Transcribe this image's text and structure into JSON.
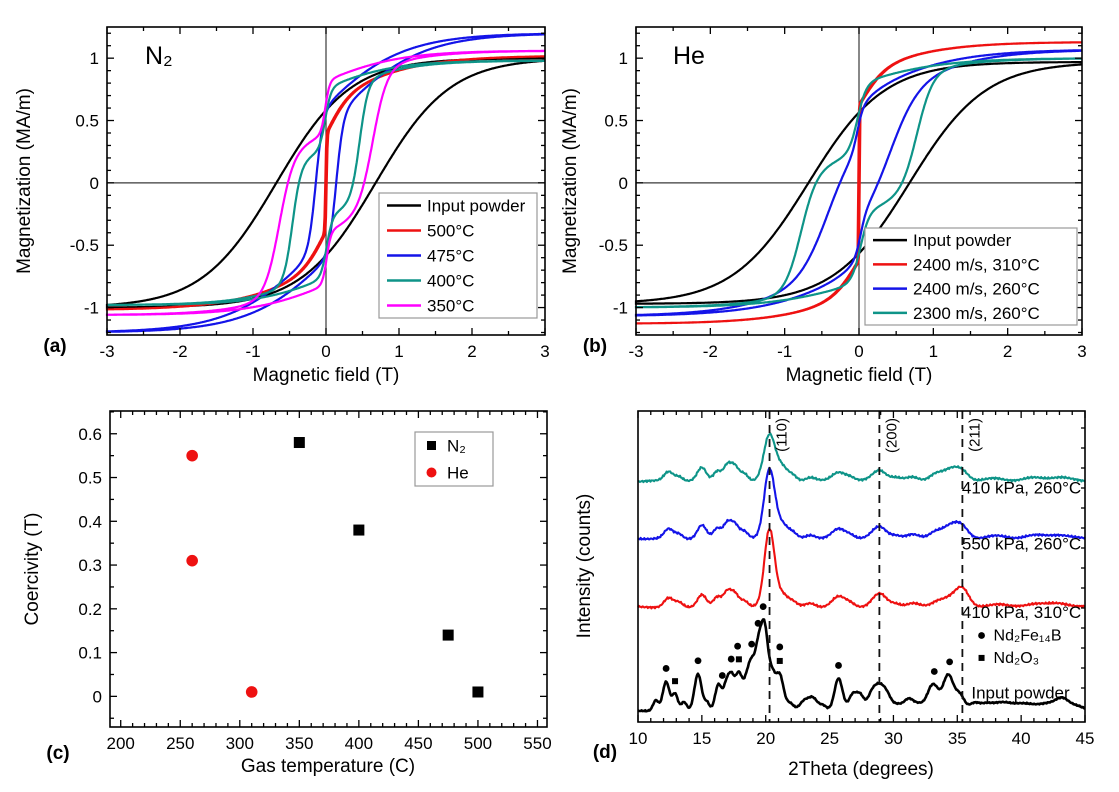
{
  "colors": {
    "black": "#000000",
    "red": "#EE1111",
    "blue": "#1414E8",
    "teal": "#0E9488",
    "magenta": "#FF00FF",
    "frame": "#000000",
    "zero_line": "#3a3a3a",
    "legend_border": "#999999"
  },
  "chart_data": [
    {
      "id": "a",
      "type": "line",
      "subtype": "hysteresis",
      "panel_label": "(a)",
      "annotation": "N₂",
      "xlabel": "Magnetic field (T)",
      "ylabel": "Magnetization (MA/m)",
      "xlim": [
        -3,
        3
      ],
      "ylim": [
        -1.22,
        1.25
      ],
      "xticks": [
        -3,
        -2,
        -1,
        0,
        1,
        2,
        3
      ],
      "xtick_labels": [
        "-3",
        "-2",
        "-1",
        "0",
        "1",
        "2",
        "3"
      ],
      "yticks": [
        -1,
        -0.5,
        0,
        0.5,
        1
      ],
      "ytick_labels": [
        "-1",
        "-0.5",
        "0",
        "0.5",
        "1"
      ],
      "minor_x": 0.5,
      "minor_y": 0.1,
      "zero_lines": true,
      "legend_position": "bottom-right",
      "series": [
        {
          "name": "Input powder",
          "color_key": "black",
          "coercivity_T": 0.68,
          "saturation_MA_per_m": 1.0,
          "components": [
            {
              "frac": 1.0,
              "hc": 0.68,
              "w": 1.02
            }
          ]
        },
        {
          "name": "500°C",
          "color_key": "red",
          "coercivity_T": 0.01,
          "saturation_MA_per_m": 1.02,
          "components": [
            {
              "frac": 0.38,
              "hc": 0.01,
              "w": 0.012
            },
            {
              "frac": 0.28,
              "hc": 0.01,
              "w": 0.32
            },
            {
              "frac": 0.34,
              "hc": 0.01,
              "w": 1.25
            }
          ]
        },
        {
          "name": "475°C",
          "color_key": "blue",
          "coercivity_T": 0.14,
          "saturation_MA_per_m": 1.2,
          "components": [
            {
              "frac": 0.45,
              "hc": 0.14,
              "w": 0.1
            },
            {
              "frac": 0.55,
              "hc": 0.14,
              "w": 1.15
            }
          ]
        },
        {
          "name": "400°C",
          "color_key": "teal",
          "coercivity_T": 0.38,
          "saturation_MA_per_m": 0.98,
          "components": [
            {
              "frac": 0.25,
              "hc": 0.01,
              "w": 0.08
            },
            {
              "frac": 0.5,
              "hc": 0.46,
              "w": 0.12
            },
            {
              "frac": 0.25,
              "hc": 0.1,
              "w": 1.0
            }
          ]
        },
        {
          "name": "350°C",
          "color_key": "magenta",
          "coercivity_T": 0.58,
          "saturation_MA_per_m": 1.06,
          "components": [
            {
              "frac": 0.2,
              "hc": 0.01,
              "w": 0.06
            },
            {
              "frac": 0.55,
              "hc": 0.64,
              "w": 0.2
            },
            {
              "frac": 0.25,
              "hc": 0.1,
              "w": 1.1
            }
          ]
        }
      ]
    },
    {
      "id": "b",
      "type": "line",
      "subtype": "hysteresis",
      "panel_label": "(b)",
      "annotation": "He",
      "xlabel": "Magnetic field (T)",
      "ylabel": "Magnetization (MA/m)",
      "xlim": [
        -3,
        3
      ],
      "ylim": [
        -1.22,
        1.25
      ],
      "xticks": [
        -3,
        -2,
        -1,
        0,
        1,
        2,
        3
      ],
      "xtick_labels": [
        "-3",
        "-2",
        "-1",
        "0",
        "1",
        "2",
        "3"
      ],
      "yticks": [
        -1,
        -0.5,
        0,
        0.5,
        1
      ],
      "ytick_labels": [
        "-1",
        "-0.5",
        "0",
        "0.5",
        "1"
      ],
      "minor_x": 0.5,
      "minor_y": 0.1,
      "zero_lines": true,
      "legend_position": "bottom-right",
      "series": [
        {
          "name": "Input powder",
          "color_key": "black",
          "coercivity_T": 0.68,
          "saturation_MA_per_m": 0.97,
          "components": [
            {
              "frac": 1.0,
              "hc": 0.68,
              "w": 1.02
            }
          ]
        },
        {
          "name": "2400 m/s, 310°C",
          "color_key": "red",
          "coercivity_T": 0.01,
          "saturation_MA_per_m": 1.13,
          "components": [
            {
              "frac": 0.55,
              "hc": 0.01,
              "w": 0.006
            },
            {
              "frac": 0.25,
              "hc": 0.01,
              "w": 0.35
            },
            {
              "frac": 0.2,
              "hc": 0.01,
              "w": 1.2
            }
          ]
        },
        {
          "name": "2400 m/s, 260°C",
          "color_key": "blue",
          "coercivity_T": 0.31,
          "saturation_MA_per_m": 1.07,
          "components": [
            {
              "frac": 0.15,
              "hc": 0.02,
              "w": 0.08
            },
            {
              "frac": 0.45,
              "hc": 0.42,
              "w": 0.38
            },
            {
              "frac": 0.4,
              "hc": 0.15,
              "w": 1.3
            }
          ]
        },
        {
          "name": "2300 m/s, 260°C",
          "color_key": "teal",
          "coercivity_T": 0.55,
          "saturation_MA_per_m": 1.0,
          "components": [
            {
              "frac": 0.28,
              "hc": 0.02,
              "w": 0.12
            },
            {
              "frac": 0.5,
              "hc": 0.78,
              "w": 0.22
            },
            {
              "frac": 0.22,
              "hc": 0.1,
              "w": 1.2
            }
          ]
        }
      ]
    },
    {
      "id": "c",
      "type": "scatter",
      "panel_label": "(c)",
      "xlabel": "Gas temperature (C)",
      "ylabel": "Coercivity (T)",
      "xlim": [
        191,
        558
      ],
      "ylim": [
        -0.07,
        0.652
      ],
      "xticks": [
        200,
        250,
        300,
        350,
        400,
        450,
        500,
        550
      ],
      "xtick_labels": [
        "200",
        "250",
        "300",
        "350",
        "400",
        "450",
        "500",
        "550"
      ],
      "yticks": [
        0,
        0.1,
        0.2,
        0.3,
        0.4,
        0.5,
        0.6
      ],
      "ytick_labels": [
        "0",
        "0.1",
        "0.2",
        "0.3",
        "0.4",
        "0.5",
        "0.6"
      ],
      "minor_x": 10,
      "minor_y": 0.05,
      "zero_lines": false,
      "legend_position": "top-right",
      "series": [
        {
          "name": "N₂",
          "marker": "square",
          "color_key": "black",
          "points": [
            [
              350,
              0.58
            ],
            [
              400,
              0.38
            ],
            [
              475,
              0.14
            ],
            [
              500,
              0.01
            ]
          ]
        },
        {
          "name": "He",
          "marker": "circle",
          "color_key": "red",
          "points": [
            [
              260,
              0.55
            ],
            [
              260,
              0.31
            ],
            [
              310,
              0.01
            ]
          ]
        }
      ]
    },
    {
      "id": "d",
      "type": "line",
      "subtype": "xrd",
      "panel_label": "(d)",
      "xlabel": "2Theta (degrees)",
      "ylabel": "Intensity (counts)",
      "xlim": [
        10,
        45
      ],
      "xticks": [
        10,
        15,
        20,
        25,
        30,
        35,
        40,
        45
      ],
      "xtick_labels": [
        "10",
        "15",
        "20",
        "25",
        "30",
        "35",
        "40",
        "45"
      ],
      "minor_x": 1,
      "dashed_lines": [
        {
          "x": 20.3,
          "label": "(110)"
        },
        {
          "x": 28.9,
          "label": "(200)"
        },
        {
          "x": 35.4,
          "label": "(211)"
        }
      ],
      "traces": [
        {
          "name": "410 kPa, 260°C",
          "color_key": "teal",
          "baseline": 0.775,
          "label_x": 44.7,
          "label_y": 0.735,
          "peaks": [
            [
              12.4,
              0.03,
              0.35
            ],
            [
              13.2,
              0.015,
              0.3
            ],
            [
              15.0,
              0.042,
              0.35
            ],
            [
              16.2,
              0.032,
              0.3
            ],
            [
              17.0,
              0.052,
              0.32
            ],
            [
              17.6,
              0.042,
              0.3
            ],
            [
              18.3,
              0.022,
              0.3
            ],
            [
              20.3,
              0.15,
              0.45
            ],
            [
              21.3,
              0.04,
              0.4
            ],
            [
              22.1,
              0.018,
              0.35
            ],
            [
              23.5,
              0.012,
              0.4
            ],
            [
              25.7,
              0.028,
              0.5
            ],
            [
              26.6,
              0.012,
              0.4
            ],
            [
              28.9,
              0.035,
              0.55
            ],
            [
              30.2,
              0.01,
              0.4
            ],
            [
              31.5,
              0.012,
              0.5
            ],
            [
              33.3,
              0.022,
              0.5
            ],
            [
              34.5,
              0.035,
              0.6
            ],
            [
              35.4,
              0.028,
              0.5
            ],
            [
              38.0,
              0.008,
              0.8
            ],
            [
              41.0,
              0.01,
              0.8
            ],
            [
              43.0,
              0.012,
              0.8
            ]
          ]
        },
        {
          "name": "550 kPa, 260°C",
          "color_key": "blue",
          "baseline": 0.59,
          "label_x": 44.7,
          "label_y": 0.555,
          "peaks": [
            [
              12.4,
              0.03,
              0.35
            ],
            [
              13.2,
              0.015,
              0.3
            ],
            [
              15.0,
              0.042,
              0.35
            ],
            [
              16.2,
              0.032,
              0.3
            ],
            [
              17.0,
              0.052,
              0.32
            ],
            [
              17.6,
              0.042,
              0.3
            ],
            [
              18.3,
              0.022,
              0.3
            ],
            [
              20.3,
              0.225,
              0.42
            ],
            [
              21.3,
              0.042,
              0.4
            ],
            [
              22.1,
              0.018,
              0.35
            ],
            [
              23.5,
              0.012,
              0.4
            ],
            [
              25.7,
              0.03,
              0.5
            ],
            [
              26.6,
              0.012,
              0.4
            ],
            [
              28.9,
              0.038,
              0.55
            ],
            [
              30.2,
              0.01,
              0.4
            ],
            [
              31.5,
              0.012,
              0.5
            ],
            [
              33.3,
              0.022,
              0.5
            ],
            [
              34.5,
              0.04,
              0.6
            ],
            [
              35.4,
              0.032,
              0.5
            ],
            [
              38.0,
              0.008,
              0.8
            ],
            [
              41.0,
              0.01,
              0.8
            ],
            [
              43.0,
              0.012,
              0.8
            ]
          ]
        },
        {
          "name": "410 kPa, 310°C",
          "color_key": "red",
          "baseline": 0.37,
          "label_x": 44.7,
          "label_y": 0.335,
          "peaks": [
            [
              12.4,
              0.028,
              0.35
            ],
            [
              13.2,
              0.014,
              0.3
            ],
            [
              15.0,
              0.04,
              0.35
            ],
            [
              16.2,
              0.03,
              0.3
            ],
            [
              17.0,
              0.05,
              0.32
            ],
            [
              17.6,
              0.04,
              0.3
            ],
            [
              18.3,
              0.02,
              0.3
            ],
            [
              20.3,
              0.25,
              0.4
            ],
            [
              21.3,
              0.04,
              0.4
            ],
            [
              22.1,
              0.016,
              0.35
            ],
            [
              23.5,
              0.012,
              0.4
            ],
            [
              25.7,
              0.032,
              0.5
            ],
            [
              26.6,
              0.012,
              0.4
            ],
            [
              28.9,
              0.042,
              0.55
            ],
            [
              30.2,
              0.01,
              0.4
            ],
            [
              31.5,
              0.012,
              0.5
            ],
            [
              33.5,
              0.018,
              0.5
            ],
            [
              34.5,
              0.028,
              0.55
            ],
            [
              35.4,
              0.055,
              0.5
            ],
            [
              38.0,
              0.008,
              0.8
            ],
            [
              41.0,
              0.01,
              0.8
            ],
            [
              43.0,
              0.012,
              0.8
            ]
          ]
        },
        {
          "name": "Input powder",
          "color_key": "black",
          "baseline": 0.035,
          "label_x": 43.8,
          "label_y": 0.075,
          "peaks": [
            [
              11.4,
              0.035,
              0.22
            ],
            [
              12.2,
              0.095,
              0.26
            ],
            [
              12.9,
              0.055,
              0.22
            ],
            [
              13.6,
              0.028,
              0.22
            ],
            [
              14.7,
              0.12,
              0.28
            ],
            [
              15.4,
              0.028,
              0.2
            ],
            [
              16.3,
              0.085,
              0.26
            ],
            [
              16.9,
              0.07,
              0.22
            ],
            [
              17.3,
              0.1,
              0.24
            ],
            [
              17.9,
              0.12,
              0.28
            ],
            [
              18.5,
              0.08,
              0.24
            ],
            [
              18.9,
              0.13,
              0.25
            ],
            [
              19.4,
              0.17,
              0.25
            ],
            [
              19.9,
              0.26,
              0.28
            ],
            [
              20.5,
              0.1,
              0.26
            ],
            [
              21.1,
              0.115,
              0.3
            ],
            [
              21.9,
              0.025,
              0.3
            ],
            [
              23.0,
              0.03,
              0.35
            ],
            [
              23.7,
              0.04,
              0.35
            ],
            [
              24.5,
              0.018,
              0.3
            ],
            [
              25.7,
              0.105,
              0.32
            ],
            [
              26.8,
              0.05,
              0.3
            ],
            [
              27.4,
              0.05,
              0.3
            ],
            [
              28.2,
              0.028,
              0.3
            ],
            [
              28.8,
              0.08,
              0.45
            ],
            [
              29.5,
              0.04,
              0.35
            ],
            [
              30.3,
              0.018,
              0.35
            ],
            [
              31.2,
              0.04,
              0.4
            ],
            [
              32.0,
              0.018,
              0.35
            ],
            [
              33.1,
              0.085,
              0.45
            ],
            [
              34.3,
              0.115,
              0.4
            ],
            [
              35.2,
              0.05,
              0.35
            ],
            [
              36.3,
              0.022,
              0.4
            ],
            [
              37.2,
              0.018,
              0.5
            ],
            [
              38.5,
              0.028,
              0.8
            ],
            [
              40.0,
              0.014,
              0.6
            ],
            [
              41.0,
              0.018,
              0.7
            ],
            [
              42.0,
              0.014,
              0.5
            ],
            [
              43.2,
              0.042,
              0.6
            ],
            [
              44.5,
              0.014,
              0.5
            ]
          ]
        }
      ],
      "phase_markers": {
        "legend_x": 36.9,
        "legend": [
          {
            "marker": "circle",
            "label": "Nd₂Fe₁₄B",
            "y": 0.262
          },
          {
            "marker": "square",
            "label": "Nd₂O₃",
            "y": 0.19
          }
        ],
        "nd2fe14b_dots_2theta": [
          12.2,
          14.7,
          16.6,
          17.3,
          17.8,
          18.9,
          19.4,
          19.8,
          21.1,
          25.7,
          33.2,
          34.4
        ],
        "nd2o3_squares_2theta": [
          12.9,
          17.9,
          21.1
        ]
      }
    }
  ]
}
